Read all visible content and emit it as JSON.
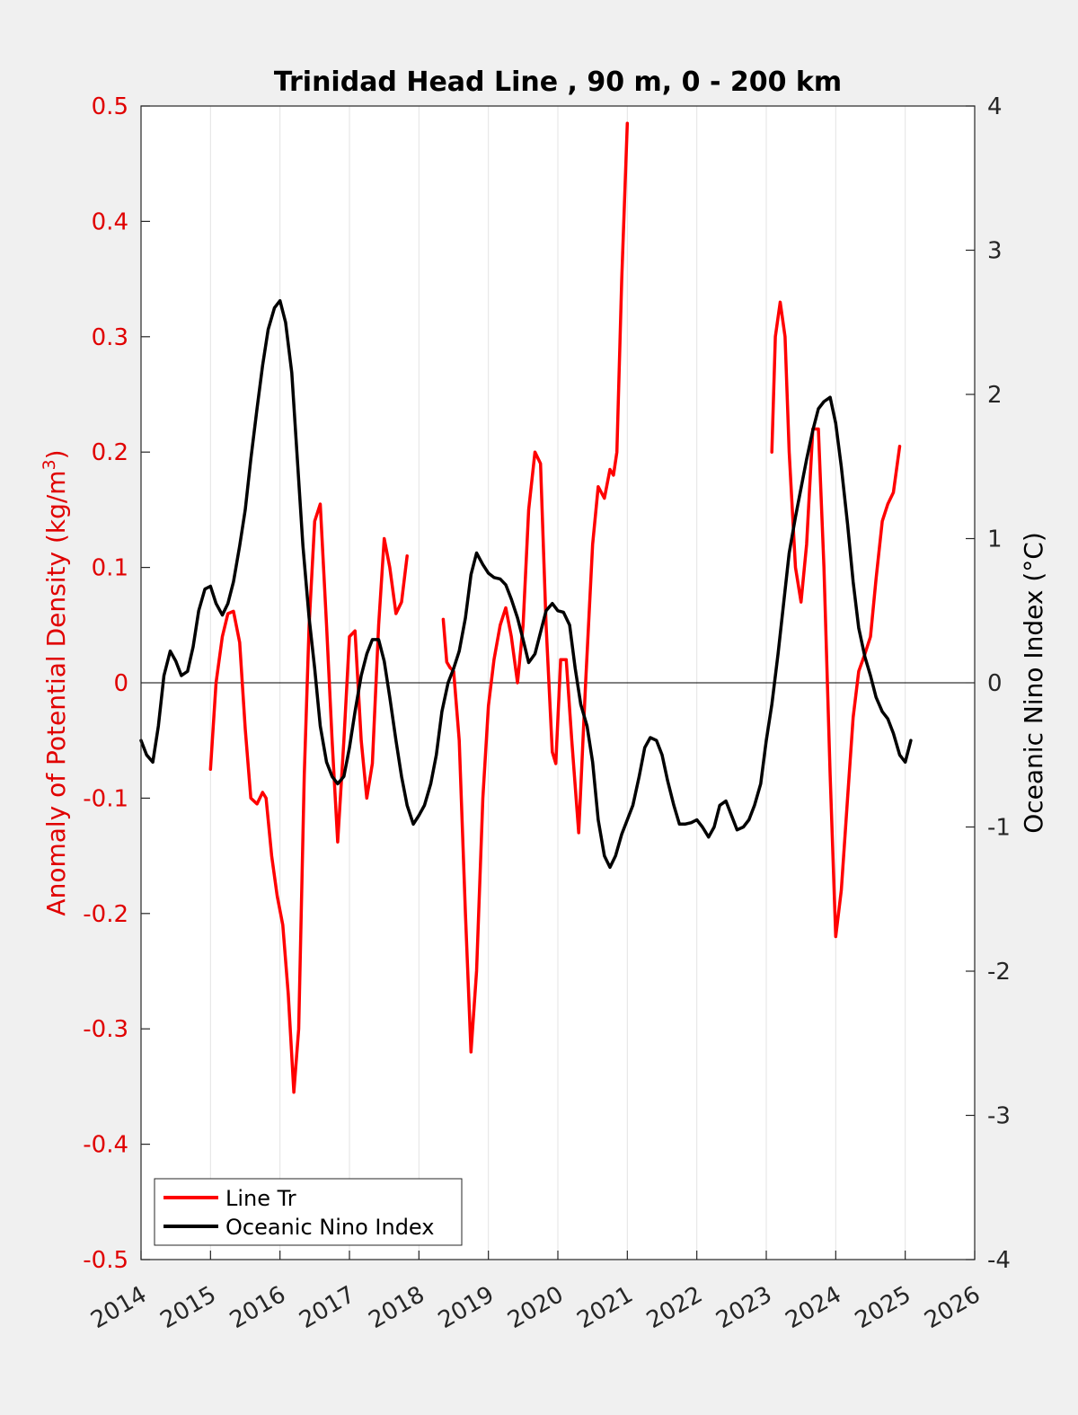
{
  "chart_data": {
    "type": "line",
    "title": "Trinidad Head Line , 90 m, 0 - 200 km",
    "ylabel_left_prefix": "Anomaly of Potential Density (kg/m",
    "ylabel_left_sup": "3",
    "ylabel_left_suffix": ")",
    "ylabel_right": "Oceanic Nino Index (°C)",
    "xlim": [
      2014,
      2026
    ],
    "ylim_left": [
      -0.5,
      0.5
    ],
    "ylim_right": [
      -4,
      4
    ],
    "x_ticks": [
      "2014",
      "2015",
      "2016",
      "2017",
      "2018",
      "2019",
      "2020",
      "2021",
      "2022",
      "2023",
      "2024",
      "2025",
      "2026"
    ],
    "left_ticks": [
      "0.5",
      "0.4",
      "0.3",
      "0.2",
      "0.1",
      "0",
      "-0.1",
      "-0.2",
      "-0.3",
      "-0.4",
      "-0.5"
    ],
    "right_ticks": [
      "4",
      "3",
      "2",
      "1",
      "0",
      "-1",
      "-2",
      "-3",
      "-4"
    ],
    "grid": "vertical",
    "legend_position": "bottom-left",
    "colors": {
      "line_tr": "#ff0000",
      "oni": "#000000",
      "left_axis": "#e00000"
    },
    "series": [
      {
        "name": "Line Tr",
        "axis": "left",
        "segments": [
          [
            [
              2015.0,
              -0.075
            ],
            [
              2015.08,
              0.0
            ],
            [
              2015.17,
              0.04
            ],
            [
              2015.25,
              0.06
            ],
            [
              2015.33,
              0.062
            ],
            [
              2015.42,
              0.035
            ],
            [
              2015.5,
              -0.04
            ],
            [
              2015.58,
              -0.1
            ],
            [
              2015.67,
              -0.105
            ],
            [
              2015.75,
              -0.095
            ],
            [
              2015.8,
              -0.1
            ],
            [
              2015.88,
              -0.15
            ],
            [
              2015.96,
              -0.185
            ],
            [
              2016.04,
              -0.21
            ],
            [
              2016.12,
              -0.27
            ],
            [
              2016.2,
              -0.355
            ],
            [
              2016.27,
              -0.3
            ],
            [
              2016.35,
              -0.08
            ],
            [
              2016.42,
              0.05
            ],
            [
              2016.5,
              0.14
            ],
            [
              2016.58,
              0.155
            ],
            [
              2016.67,
              0.05
            ],
            [
              2016.75,
              -0.05
            ],
            [
              2016.83,
              -0.138
            ],
            [
              2016.92,
              -0.05
            ],
            [
              2017.0,
              0.04
            ],
            [
              2017.08,
              0.045
            ],
            [
              2017.17,
              -0.05
            ],
            [
              2017.25,
              -0.1
            ],
            [
              2017.33,
              -0.07
            ],
            [
              2017.42,
              0.05
            ],
            [
              2017.5,
              0.125
            ],
            [
              2017.58,
              0.1
            ],
            [
              2017.67,
              0.06
            ],
            [
              2017.75,
              0.07
            ],
            [
              2017.83,
              0.11
            ]
          ],
          [
            [
              2018.35,
              0.055
            ],
            [
              2018.4,
              0.018
            ],
            [
              2018.45,
              0.013
            ],
            [
              2018.5,
              0.01
            ],
            [
              2018.58,
              -0.05
            ],
            [
              2018.67,
              -0.2
            ],
            [
              2018.75,
              -0.32
            ],
            [
              2018.83,
              -0.25
            ],
            [
              2018.92,
              -0.1
            ],
            [
              2019.0,
              -0.02
            ],
            [
              2019.08,
              0.02
            ],
            [
              2019.17,
              0.05
            ],
            [
              2019.25,
              0.065
            ],
            [
              2019.33,
              0.04
            ],
            [
              2019.42,
              0.0
            ],
            [
              2019.5,
              0.05
            ],
            [
              2019.58,
              0.15
            ],
            [
              2019.67,
              0.2
            ],
            [
              2019.75,
              0.19
            ],
            [
              2019.83,
              0.05
            ],
            [
              2019.92,
              -0.06
            ],
            [
              2019.97,
              -0.07
            ],
            [
              2020.04,
              0.02
            ],
            [
              2020.12,
              0.02
            ],
            [
              2020.2,
              -0.05
            ],
            [
              2020.3,
              -0.13
            ],
            [
              2020.4,
              0.0
            ],
            [
              2020.5,
              0.12
            ],
            [
              2020.58,
              0.17
            ],
            [
              2020.67,
              0.16
            ],
            [
              2020.75,
              0.185
            ],
            [
              2020.8,
              0.18
            ],
            [
              2020.85,
              0.2
            ],
            [
              2020.92,
              0.35
            ],
            [
              2021.0,
              0.485
            ]
          ],
          [
            [
              2023.08,
              0.2
            ],
            [
              2023.13,
              0.3
            ],
            [
              2023.2,
              0.33
            ],
            [
              2023.27,
              0.3
            ],
            [
              2023.33,
              0.2
            ],
            [
              2023.42,
              0.1
            ],
            [
              2023.5,
              0.07
            ],
            [
              2023.58,
              0.12
            ],
            [
              2023.67,
              0.22
            ],
            [
              2023.75,
              0.22
            ],
            [
              2023.83,
              0.1
            ],
            [
              2023.92,
              -0.08
            ],
            [
              2024.0,
              -0.22
            ],
            [
              2024.08,
              -0.18
            ],
            [
              2024.17,
              -0.1
            ],
            [
              2024.25,
              -0.03
            ],
            [
              2024.33,
              0.01
            ],
            [
              2024.42,
              0.025
            ],
            [
              2024.5,
              0.04
            ],
            [
              2024.58,
              0.09
            ],
            [
              2024.67,
              0.14
            ],
            [
              2024.75,
              0.155
            ],
            [
              2024.83,
              0.165
            ],
            [
              2024.92,
              0.205
            ]
          ]
        ]
      },
      {
        "name": "Oceanic Nino Index",
        "axis": "right",
        "segments": [
          [
            [
              2014.0,
              -0.4
            ],
            [
              2014.08,
              -0.5
            ],
            [
              2014.17,
              -0.55
            ],
            [
              2014.25,
              -0.3
            ],
            [
              2014.33,
              0.05
            ],
            [
              2014.42,
              0.22
            ],
            [
              2014.5,
              0.15
            ],
            [
              2014.58,
              0.05
            ],
            [
              2014.67,
              0.08
            ],
            [
              2014.75,
              0.25
            ],
            [
              2014.83,
              0.5
            ],
            [
              2014.92,
              0.65
            ],
            [
              2015.0,
              0.67
            ],
            [
              2015.08,
              0.55
            ],
            [
              2015.17,
              0.47
            ],
            [
              2015.25,
              0.55
            ],
            [
              2015.33,
              0.7
            ],
            [
              2015.42,
              0.95
            ],
            [
              2015.5,
              1.2
            ],
            [
              2015.58,
              1.55
            ],
            [
              2015.67,
              1.9
            ],
            [
              2015.75,
              2.2
            ],
            [
              2015.83,
              2.45
            ],
            [
              2015.92,
              2.6
            ],
            [
              2016.0,
              2.65
            ],
            [
              2016.08,
              2.5
            ],
            [
              2016.17,
              2.15
            ],
            [
              2016.25,
              1.55
            ],
            [
              2016.33,
              0.95
            ],
            [
              2016.42,
              0.45
            ],
            [
              2016.5,
              0.1
            ],
            [
              2016.58,
              -0.3
            ],
            [
              2016.67,
              -0.55
            ],
            [
              2016.75,
              -0.65
            ],
            [
              2016.83,
              -0.7
            ],
            [
              2016.92,
              -0.65
            ],
            [
              2017.0,
              -0.45
            ],
            [
              2017.08,
              -0.2
            ],
            [
              2017.17,
              0.05
            ],
            [
              2017.25,
              0.2
            ],
            [
              2017.33,
              0.3
            ],
            [
              2017.42,
              0.3
            ],
            [
              2017.5,
              0.15
            ],
            [
              2017.58,
              -0.1
            ],
            [
              2017.67,
              -0.4
            ],
            [
              2017.75,
              -0.65
            ],
            [
              2017.83,
              -0.85
            ],
            [
              2017.92,
              -0.98
            ],
            [
              2018.0,
              -0.92
            ],
            [
              2018.08,
              -0.85
            ],
            [
              2018.17,
              -0.7
            ],
            [
              2018.25,
              -0.5
            ],
            [
              2018.33,
              -0.2
            ],
            [
              2018.42,
              0.0
            ],
            [
              2018.5,
              0.1
            ],
            [
              2018.58,
              0.22
            ],
            [
              2018.67,
              0.45
            ],
            [
              2018.75,
              0.75
            ],
            [
              2018.83,
              0.9
            ],
            [
              2018.92,
              0.82
            ],
            [
              2019.0,
              0.76
            ],
            [
              2019.08,
              0.73
            ],
            [
              2019.17,
              0.72
            ],
            [
              2019.25,
              0.68
            ],
            [
              2019.33,
              0.58
            ],
            [
              2019.42,
              0.45
            ],
            [
              2019.5,
              0.3
            ],
            [
              2019.58,
              0.14
            ],
            [
              2019.67,
              0.2
            ],
            [
              2019.75,
              0.35
            ],
            [
              2019.83,
              0.5
            ],
            [
              2019.92,
              0.55
            ],
            [
              2020.0,
              0.5
            ],
            [
              2020.08,
              0.49
            ],
            [
              2020.17,
              0.4
            ],
            [
              2020.25,
              0.1
            ],
            [
              2020.33,
              -0.15
            ],
            [
              2020.42,
              -0.3
            ],
            [
              2020.5,
              -0.55
            ],
            [
              2020.58,
              -0.95
            ],
            [
              2020.67,
              -1.2
            ],
            [
              2020.75,
              -1.28
            ],
            [
              2020.83,
              -1.2
            ],
            [
              2020.92,
              -1.05
            ],
            [
              2021.0,
              -0.95
            ],
            [
              2021.08,
              -0.85
            ],
            [
              2021.17,
              -0.65
            ],
            [
              2021.25,
              -0.45
            ],
            [
              2021.33,
              -0.38
            ],
            [
              2021.42,
              -0.4
            ],
            [
              2021.5,
              -0.5
            ],
            [
              2021.58,
              -0.68
            ],
            [
              2021.67,
              -0.85
            ],
            [
              2021.75,
              -0.98
            ],
            [
              2021.83,
              -0.98
            ],
            [
              2021.92,
              -0.97
            ],
            [
              2022.0,
              -0.95
            ],
            [
              2022.08,
              -1.0
            ],
            [
              2022.17,
              -1.07
            ],
            [
              2022.25,
              -1.0
            ],
            [
              2022.33,
              -0.85
            ],
            [
              2022.42,
              -0.82
            ],
            [
              2022.5,
              -0.92
            ],
            [
              2022.58,
              -1.02
            ],
            [
              2022.67,
              -1.0
            ],
            [
              2022.75,
              -0.95
            ],
            [
              2022.83,
              -0.85
            ],
            [
              2022.92,
              -0.7
            ],
            [
              2023.0,
              -0.4
            ],
            [
              2023.08,
              -0.15
            ],
            [
              2023.17,
              0.2
            ],
            [
              2023.25,
              0.55
            ],
            [
              2023.33,
              0.9
            ],
            [
              2023.42,
              1.15
            ],
            [
              2023.5,
              1.35
            ],
            [
              2023.58,
              1.55
            ],
            [
              2023.67,
              1.75
            ],
            [
              2023.75,
              1.9
            ],
            [
              2023.83,
              1.95
            ],
            [
              2023.92,
              1.98
            ],
            [
              2024.0,
              1.8
            ],
            [
              2024.08,
              1.5
            ],
            [
              2024.17,
              1.1
            ],
            [
              2024.25,
              0.7
            ],
            [
              2024.33,
              0.38
            ],
            [
              2024.42,
              0.18
            ],
            [
              2024.5,
              0.05
            ],
            [
              2024.58,
              -0.1
            ],
            [
              2024.67,
              -0.2
            ],
            [
              2024.75,
              -0.25
            ],
            [
              2024.83,
              -0.35
            ],
            [
              2024.92,
              -0.5
            ],
            [
              2025.0,
              -0.55
            ],
            [
              2025.08,
              -0.4
            ]
          ]
        ]
      }
    ]
  }
}
